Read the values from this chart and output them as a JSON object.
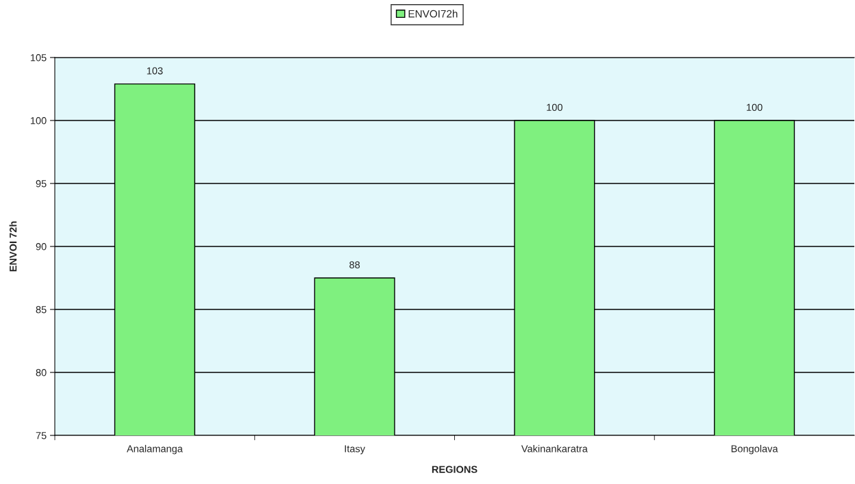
{
  "chart_data": {
    "type": "bar",
    "xlabel": "REGIONS",
    "ylabel": "ENVOI 72h",
    "categories": [
      "Analamanga",
      "Itasy",
      "Vakinankaratra",
      "Bongolava"
    ],
    "series": [
      {
        "name": "ENVOI72h",
        "color": "#7ff07f",
        "values": [
          102.9,
          87.5,
          100,
          100
        ],
        "value_labels": [
          "103",
          "88",
          "100",
          "100"
        ]
      }
    ],
    "ylim": [
      75,
      105
    ],
    "yticks": [
      75,
      80,
      85,
      90,
      95,
      100,
      105
    ],
    "grid": "y",
    "legend": "top"
  }
}
